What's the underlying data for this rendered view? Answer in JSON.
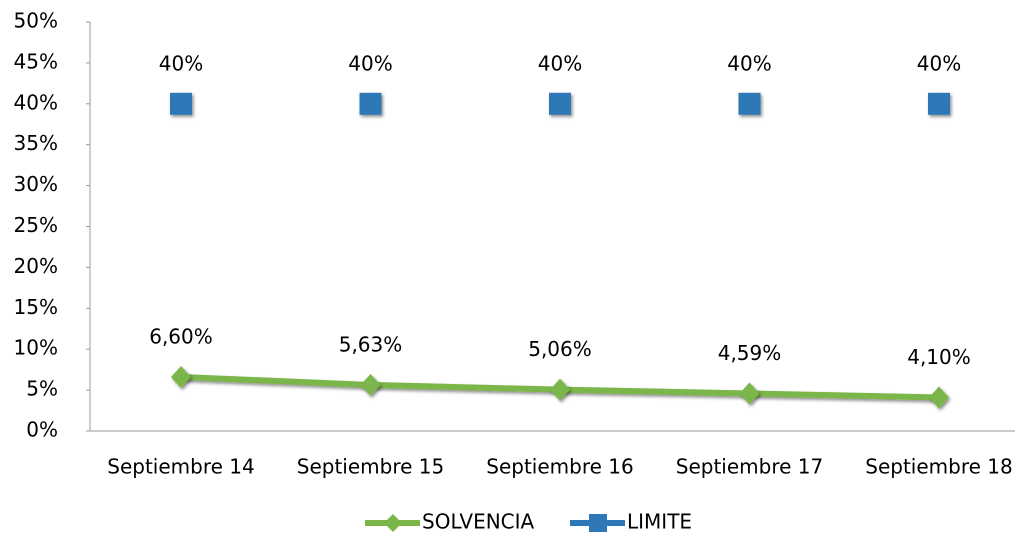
{
  "chart_data": {
    "type": "line",
    "categories": [
      "Septiembre 14",
      "Septiembre 15",
      "Septiembre 16",
      "Septiembre 17",
      "Septiembre 18"
    ],
    "series": [
      {
        "name": "SOLVENCIA",
        "color": "#7ab648",
        "marker": "diamond",
        "values": [
          6.6,
          5.63,
          5.06,
          4.59,
          4.1
        ],
        "value_labels": [
          "6,60%",
          "5,63%",
          "5,06%",
          "4,59%",
          "4,10%"
        ]
      },
      {
        "name": "LIMITE",
        "color": "#2e78b7",
        "marker": "square",
        "values": [
          40,
          40,
          40,
          40,
          40
        ],
        "value_labels": [
          "40%",
          "40%",
          "40%",
          "40%",
          "40%"
        ]
      }
    ],
    "ylim": [
      0,
      50
    ],
    "yticks": [
      {
        "value": 0,
        "label": "0%"
      },
      {
        "value": 5,
        "label": "5%"
      },
      {
        "value": 10,
        "label": "10%"
      },
      {
        "value": 15,
        "label": "15%"
      },
      {
        "value": 20,
        "label": "20%"
      },
      {
        "value": 25,
        "label": "25%"
      },
      {
        "value": 30,
        "label": "30%"
      },
      {
        "value": 35,
        "label": "35%"
      },
      {
        "value": 40,
        "label": "40%"
      },
      {
        "value": 45,
        "label": "45%"
      },
      {
        "value": 50,
        "label": "50%"
      }
    ],
    "grid": false,
    "legend": "bottom"
  }
}
